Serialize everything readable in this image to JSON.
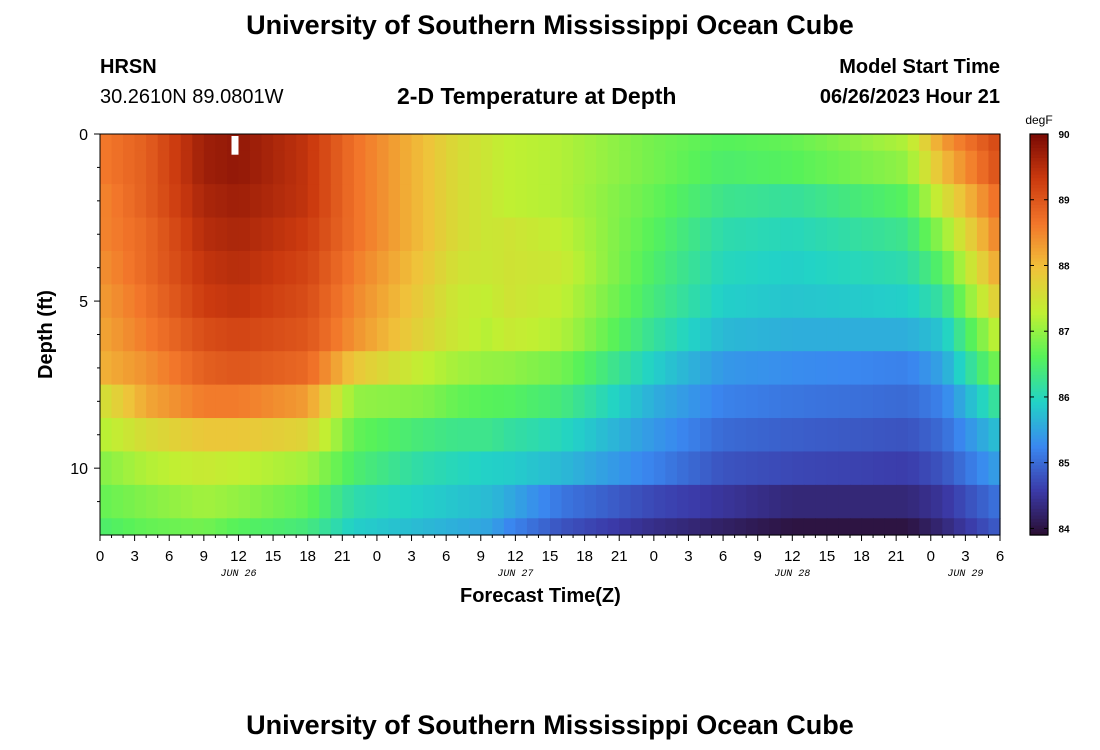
{
  "page": {
    "title_top": "University of Southern Mississippi Ocean Cube",
    "title_bottom": "University of Southern Mississippi Ocean Cube",
    "station": "HRSN",
    "coords": "30.2610N  89.0801W",
    "subtitle": "2-D Temperature at Depth",
    "model_start_label": "Model Start Time",
    "model_start_value": "06/26/2023 Hour 21"
  },
  "chart_data": {
    "type": "heatmap",
    "title": "2-D Temperature at Depth",
    "xlabel": "Forecast Time(Z)",
    "ylabel": "Depth (ft)",
    "x_range_hours": [
      0,
      78
    ],
    "x_step_hours": 1,
    "x_tick_labels": [
      "0",
      "3",
      "6",
      "9",
      "12",
      "15",
      "18",
      "21",
      "0",
      "3",
      "6",
      "9",
      "12",
      "15",
      "18",
      "21",
      "0",
      "3",
      "6",
      "9",
      "12",
      "15",
      "18",
      "21",
      "0",
      "3",
      "6"
    ],
    "date_labels": [
      {
        "text": "JUN 26",
        "hour": 12
      },
      {
        "text": "JUN 27",
        "hour": 36
      },
      {
        "text": "JUN 28",
        "hour": 60
      },
      {
        "text": "JUN 29",
        "hour": 75
      }
    ],
    "y_range_ft": [
      0,
      12
    ],
    "y_ticks": [
      0,
      5,
      10
    ],
    "depth_layers_ft": [
      [
        0,
        0.5
      ],
      [
        0.5,
        1.5
      ],
      [
        1.5,
        2.5
      ],
      [
        2.5,
        3.5
      ],
      [
        3.5,
        4.5
      ],
      [
        4.5,
        5.5
      ],
      [
        5.5,
        6.5
      ],
      [
        6.5,
        7.5
      ],
      [
        7.5,
        8.5
      ],
      [
        8.5,
        9.5
      ],
      [
        9.5,
        10.5
      ],
      [
        10.5,
        11.5
      ],
      [
        11.5,
        12
      ]
    ],
    "colorbar": {
      "units": "degF",
      "min": 83.9,
      "max": 90,
      "ticks": [
        84,
        85,
        86,
        87,
        88,
        89,
        90
      ],
      "colors": [
        "#2a0d30",
        "#3b3aa8",
        "#3a88f0",
        "#22d3c6",
        "#56f25a",
        "#c0f032",
        "#f0c23a",
        "#f2762a",
        "#cb3a0f",
        "#7a0a04"
      ]
    },
    "marker": {
      "hour": 11.7,
      "depth_ft": [
        0,
        0.5
      ],
      "color": "#ffffff"
    },
    "series": [
      {
        "name": "layer 0-0.5 ft",
        "hours": [
          0,
          4,
          9,
          12,
          18,
          22,
          28,
          31,
          34,
          35,
          40,
          48,
          54,
          60,
          70,
          73,
          78
        ],
        "temp_degF": [
          88.6,
          88.9,
          89.7,
          89.8,
          89.4,
          88.7,
          88.0,
          87.6,
          87.4,
          87.3,
          87.2,
          86.8,
          86.6,
          86.7,
          87.2,
          88.3,
          89.2
        ]
      },
      {
        "name": "layer 1 ft",
        "hours": [
          0,
          4,
          9,
          12,
          18,
          22,
          28,
          31,
          34,
          35,
          40,
          48,
          54,
          60,
          70,
          73,
          78
        ],
        "temp_degF": [
          88.6,
          88.9,
          89.7,
          89.8,
          89.4,
          88.7,
          88.0,
          87.6,
          87.4,
          87.3,
          87.2,
          86.8,
          86.5,
          86.6,
          87.0,
          88.0,
          89.1
        ]
      },
      {
        "name": "layer 2 ft",
        "hours": [
          0,
          4,
          9,
          12,
          18,
          22,
          28,
          31,
          34,
          35,
          40,
          48,
          54,
          60,
          70,
          73,
          78
        ],
        "temp_degF": [
          88.5,
          88.9,
          89.6,
          89.7,
          89.4,
          88.7,
          88.0,
          87.6,
          87.4,
          87.3,
          87.2,
          86.7,
          86.3,
          86.2,
          86.6,
          87.5,
          88.8
        ]
      },
      {
        "name": "layer 3 ft",
        "hours": [
          0,
          4,
          9,
          12,
          18,
          22,
          28,
          31,
          34,
          35,
          40,
          48,
          54,
          60,
          70,
          73,
          78
        ],
        "temp_degF": [
          88.5,
          88.8,
          89.5,
          89.6,
          89.3,
          88.7,
          88.0,
          87.6,
          87.4,
          87.5,
          87.3,
          86.6,
          86.1,
          86.0,
          86.3,
          87.0,
          88.6
        ]
      },
      {
        "name": "layer 4 ft",
        "hours": [
          0,
          4,
          9,
          12,
          18,
          22,
          28,
          31,
          34,
          35,
          40,
          48,
          54,
          60,
          70,
          73,
          78
        ],
        "temp_degF": [
          88.4,
          88.8,
          89.4,
          89.5,
          89.2,
          88.6,
          87.9,
          87.5,
          87.4,
          87.5,
          87.4,
          86.5,
          86.0,
          85.9,
          86.1,
          86.6,
          88.3
        ]
      },
      {
        "name": "layer 5 ft",
        "hours": [
          0,
          4,
          9,
          12,
          18,
          22,
          28,
          31,
          34,
          35,
          40,
          48,
          54,
          60,
          70,
          73,
          78
        ],
        "temp_degF": [
          88.3,
          88.7,
          89.3,
          89.4,
          89.1,
          88.5,
          87.8,
          87.4,
          87.3,
          87.5,
          87.3,
          86.4,
          85.9,
          85.8,
          85.9,
          86.2,
          87.9
        ]
      },
      {
        "name": "layer 6 ft",
        "hours": [
          0,
          4,
          9,
          12,
          18,
          22,
          28,
          31,
          34,
          35,
          40,
          48,
          54,
          60,
          70,
          73,
          78
        ],
        "temp_degF": [
          88.2,
          88.6,
          89.1,
          89.2,
          89.0,
          88.4,
          87.7,
          87.4,
          87.2,
          87.4,
          87.2,
          86.2,
          85.7,
          85.6,
          85.6,
          85.8,
          87.4
        ]
      },
      {
        "name": "layer 7 ft",
        "hours": [
          0,
          4,
          9,
          12,
          18,
          22,
          28,
          31,
          34,
          35,
          40,
          48,
          54,
          60,
          70,
          73,
          78
        ],
        "temp_degF": [
          88.1,
          88.4,
          88.9,
          89.0,
          88.8,
          87.9,
          87.3,
          87.1,
          87.0,
          87.0,
          86.8,
          85.9,
          85.4,
          85.3,
          85.2,
          85.5,
          86.9
        ]
      },
      {
        "name": "layer 8 ft",
        "hours": [
          0,
          4,
          9,
          12,
          18,
          22,
          28,
          31,
          34,
          35,
          40,
          48,
          54,
          60,
          70,
          73,
          78
        ],
        "temp_degF": [
          87.5,
          88.2,
          88.6,
          88.6,
          88.3,
          87.0,
          86.9,
          86.7,
          86.6,
          86.6,
          86.4,
          85.6,
          85.2,
          85.1,
          85.0,
          85.2,
          86.3
        ]
      },
      {
        "name": "layer 9 ft",
        "hours": [
          0,
          4,
          9,
          12,
          18,
          22,
          28,
          31,
          34,
          35,
          40,
          48,
          54,
          60,
          70,
          73,
          78
        ],
        "temp_degF": [
          87.2,
          87.6,
          87.9,
          87.9,
          87.7,
          86.7,
          86.4,
          86.3,
          86.3,
          86.2,
          86.0,
          85.4,
          85.0,
          84.9,
          84.8,
          85.0,
          85.8
        ]
      },
      {
        "name": "layer 10 ft",
        "hours": [
          0,
          4,
          9,
          12,
          18,
          22,
          28,
          31,
          34,
          35,
          40,
          48,
          54,
          60,
          70,
          73,
          78
        ],
        "temp_degF": [
          86.9,
          87.2,
          87.4,
          87.3,
          87.1,
          86.5,
          86.1,
          86.0,
          85.9,
          85.9,
          85.7,
          85.2,
          84.8,
          84.7,
          84.6,
          84.8,
          85.5
        ]
      },
      {
        "name": "layer 11 ft",
        "hours": [
          0,
          4,
          9,
          12,
          18,
          22,
          28,
          31,
          34,
          35,
          40,
          48,
          54,
          60,
          70,
          73,
          78
        ],
        "temp_degF": [
          86.7,
          86.9,
          87.1,
          87.0,
          86.7,
          86.1,
          85.9,
          85.8,
          85.7,
          85.6,
          85.1,
          84.7,
          84.5,
          84.3,
          84.3,
          84.5,
          85.1
        ]
      },
      {
        "name": "layer 11.5-12 ft",
        "hours": [
          0,
          4,
          9,
          12,
          18,
          22,
          28,
          31,
          34,
          35,
          40,
          48,
          54,
          60,
          70,
          73,
          78
        ],
        "temp_degF": [
          86.5,
          86.7,
          86.8,
          86.6,
          86.4,
          85.9,
          85.7,
          85.6,
          85.5,
          85.3,
          84.8,
          84.4,
          84.2,
          84.0,
          84.0,
          84.3,
          84.9
        ]
      }
    ]
  }
}
